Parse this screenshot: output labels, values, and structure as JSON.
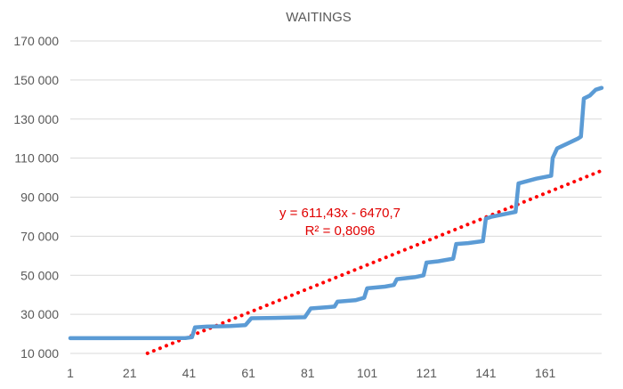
{
  "chart_data": {
    "type": "line",
    "title": "WAITINGS",
    "xlabel": "",
    "ylabel": "",
    "grid": true,
    "legend": "none",
    "xlim": [
      1,
      180
    ],
    "ylim": [
      10000,
      170000
    ],
    "y_ticks": [
      10000,
      30000,
      50000,
      70000,
      90000,
      110000,
      130000,
      150000,
      170000
    ],
    "y_tick_labels": [
      "10 000",
      "30 000",
      "50 000",
      "70 000",
      "90 000",
      "110 000",
      "130 000",
      "150 000",
      "170 000"
    ],
    "x_ticks": [
      1,
      21,
      41,
      61,
      81,
      101,
      121,
      141,
      161
    ],
    "x_tick_labels": [
      "1",
      "21",
      "41",
      "61",
      "81",
      "101",
      "121",
      "141",
      "161"
    ],
    "series": [
      {
        "color": "#5b9bd5",
        "points": [
          [
            1,
            17800
          ],
          [
            40,
            17900
          ],
          [
            42,
            18300
          ],
          [
            43,
            23300
          ],
          [
            47,
            23700
          ],
          [
            55,
            24000
          ],
          [
            60,
            24500
          ],
          [
            62,
            28000
          ],
          [
            70,
            28200
          ],
          [
            80,
            28500
          ],
          [
            82,
            33000
          ],
          [
            88,
            33700
          ],
          [
            90,
            34000
          ],
          [
            91,
            36500
          ],
          [
            97,
            37200
          ],
          [
            100,
            38500
          ],
          [
            101,
            43300
          ],
          [
            107,
            44200
          ],
          [
            110,
            45000
          ],
          [
            111,
            48000
          ],
          [
            117,
            49000
          ],
          [
            120,
            50000
          ],
          [
            121,
            56500
          ],
          [
            125,
            57200
          ],
          [
            130,
            58500
          ],
          [
            131,
            66000
          ],
          [
            135,
            66500
          ],
          [
            140,
            67500
          ],
          [
            141,
            79000
          ],
          [
            143,
            80000
          ],
          [
            148,
            81500
          ],
          [
            151,
            82500
          ],
          [
            152,
            97000
          ],
          [
            158,
            99500
          ],
          [
            163,
            101000
          ],
          [
            163.5,
            110000
          ],
          [
            165,
            115000
          ],
          [
            172,
            120000
          ],
          [
            173,
            121000
          ],
          [
            174,
            140500
          ],
          [
            176,
            142000
          ],
          [
            178,
            145000
          ],
          [
            181,
            146000
          ]
        ]
      }
    ],
    "trendline": {
      "style": "dotted",
      "color": "#ff0000",
      "slope": 611.43,
      "intercept": -6470.7,
      "x_range": [
        27,
        181
      ],
      "equation_label": "y = 611,43x - 6470,7",
      "r2_label": "R² = 0,8096"
    }
  }
}
